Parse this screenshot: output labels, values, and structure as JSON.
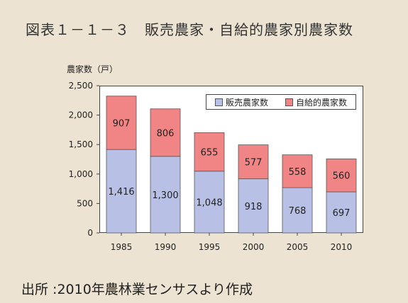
{
  "figure": {
    "title": "図表１－１－３　販売農家・自給的農家別農家数",
    "source": "出所 :2010年農林業センサスより作成"
  },
  "chart_data": {
    "type": "bar",
    "stacked": true,
    "ylabel": "農家数（戸）",
    "ylim": [
      0,
      2500
    ],
    "yticks": [
      "0",
      "500",
      "1,000",
      "1,500",
      "2,000",
      "2,500"
    ],
    "ytick_values": [
      0,
      500,
      1000,
      1500,
      2000,
      2500
    ],
    "categories": [
      "1985",
      "1990",
      "1995",
      "2000",
      "2005",
      "2010"
    ],
    "series": [
      {
        "name": "販売農家数",
        "color": "#b8c0e6",
        "values": [
          1416,
          1300,
          1048,
          918,
          768,
          697
        ],
        "labels": [
          "1,416",
          "1,300",
          "1,048",
          "918",
          "768",
          "697"
        ]
      },
      {
        "name": "自給的農家数",
        "color": "#f18585",
        "values": [
          907,
          806,
          655,
          577,
          558,
          560
        ],
        "labels": [
          "907",
          "806",
          "655",
          "577",
          "558",
          "560"
        ]
      }
    ],
    "legend": "top-right",
    "grid": false
  }
}
